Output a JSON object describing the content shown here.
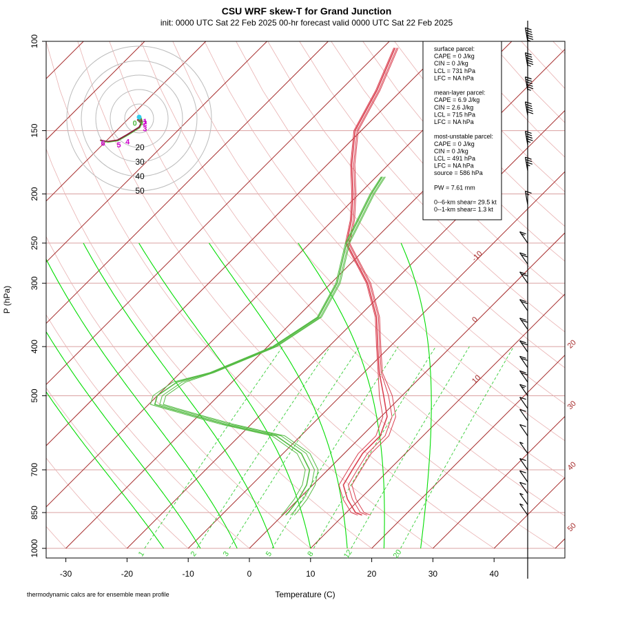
{
  "header": {
    "title": "CSU WRF skew-T for Grand Junction",
    "subtitle": "init: 0000 UTC Sat 22 Feb 2025     00-hr forecast valid 0000 UTC Sat 22 Feb 2025"
  },
  "footer_note": "thermodynamic calcs are for ensemble mean profile",
  "info_box": {
    "lines": [
      "surface parcel:",
      "CAPE = 0 J/kg",
      "CIN = 0 J/kg",
      "LCL = 731 hPa",
      "LFC = NA hPa",
      "",
      "mean-layer parcel:",
      "CAPE = 6.9 J/kg",
      "CIN = 2.6 J/kg",
      "LCL = 715 hPa",
      "LFC = NA hPa",
      "",
      "most-unstable parcel:",
      "CAPE = 0 J/kg",
      "CIN = 0 J/kg",
      "LCL = 491 hPa",
      "LFC = NA hPa",
      "source = 586 hPa",
      "",
      "PW =  7.61 mm",
      "",
      "0--6-km shear= 29.5 kt",
      "0--1-km shear= 1.3 kt"
    ]
  },
  "colors": {
    "isotherm": "#a52a2a",
    "isobar": "#d9a0a0",
    "dry_adiabat": "#e8b0b0",
    "moist_adiabat": "#00dd00",
    "mixing_ratio": "#33cc33",
    "temperature": "#d94050",
    "dewpoint": "#55bb44",
    "hodo_ring": "#bbbbbb",
    "hodo_trace": "#8b1a3a",
    "hodo_pts": "#cc00cc",
    "barb": "#000000"
  },
  "chart_data": {
    "type": "line",
    "xlabel": "Temperature (C)",
    "ylabel": "P (hPa)",
    "xlim": [
      -33,
      45
    ],
    "ylim_hpa": [
      1000,
      100
    ],
    "x_ticks": [
      -30,
      -20,
      -10,
      0,
      10,
      20,
      30,
      40
    ],
    "y_ticks": [
      100,
      150,
      200,
      250,
      300,
      400,
      500,
      700,
      850,
      1000
    ],
    "isotherm_labels": [
      -10,
      0,
      10,
      20,
      30,
      40,
      50
    ],
    "mixing_ratio_labels": [
      "1",
      "2",
      "3",
      "5",
      "8",
      "12",
      "20"
    ],
    "mixing_ratio_values": [
      1,
      2,
      3,
      5,
      8,
      12,
      20
    ],
    "series": [
      {
        "role": "temperature",
        "points": [
          [
            860,
            13
          ],
          [
            850,
            11.5
          ],
          [
            800,
            8
          ],
          [
            750,
            5
          ],
          [
            700,
            4
          ],
          [
            650,
            3
          ],
          [
            600,
            3
          ],
          [
            550,
            1
          ],
          [
            500,
            -3
          ],
          [
            450,
            -7.5
          ],
          [
            400,
            -12
          ],
          [
            350,
            -17
          ],
          [
            300,
            -24
          ],
          [
            250,
            -34
          ],
          [
            225,
            -37
          ],
          [
            200,
            -41
          ],
          [
            175,
            -46
          ],
          [
            150,
            -51
          ],
          [
            125,
            -54
          ],
          [
            103,
            -58
          ]
        ]
      },
      {
        "role": "dewpoint",
        "points": [
          [
            860,
            0.5
          ],
          [
            850,
            0.5
          ],
          [
            800,
            0
          ],
          [
            750,
            -1
          ],
          [
            700,
            -3
          ],
          [
            650,
            -7
          ],
          [
            600,
            -14
          ],
          [
            570,
            -24
          ],
          [
            550,
            -30
          ],
          [
            530,
            -36
          ],
          [
            520,
            -39
          ],
          [
            500,
            -40
          ],
          [
            470,
            -39
          ],
          [
            450,
            -35
          ],
          [
            400,
            -29
          ],
          [
            350,
            -26.5
          ],
          [
            300,
            -29
          ],
          [
            250,
            -34
          ],
          [
            200,
            -38
          ],
          [
            185,
            -39
          ]
        ]
      }
    ],
    "hodograph": {
      "ring_labels": [
        "20",
        "30",
        "40",
        "50"
      ],
      "point_labels": [
        "6",
        "5",
        "4",
        "3",
        "2",
        "1",
        "0"
      ]
    },
    "wind_barbs": [
      {
        "p": 100,
        "kt": 55
      },
      {
        "p": 112,
        "kt": 55
      },
      {
        "p": 125,
        "kt": 55
      },
      {
        "p": 140,
        "kt": 50
      },
      {
        "p": 160,
        "kt": 45
      },
      {
        "p": 180,
        "kt": 35
      },
      {
        "p": 210,
        "kt": 15
      },
      {
        "p": 250,
        "kt": 15
      },
      {
        "p": 275,
        "kt": 20
      },
      {
        "p": 300,
        "kt": 20
      },
      {
        "p": 340,
        "kt": 20
      },
      {
        "p": 370,
        "kt": 20
      },
      {
        "p": 410,
        "kt": 20
      },
      {
        "p": 440,
        "kt": 20
      },
      {
        "p": 470,
        "kt": 20
      },
      {
        "p": 500,
        "kt": 15
      },
      {
        "p": 530,
        "kt": 10
      },
      {
        "p": 560,
        "kt": 10
      },
      {
        "p": 600,
        "kt": 10
      },
      {
        "p": 650,
        "kt": 5
      },
      {
        "p": 700,
        "kt": 10
      },
      {
        "p": 740,
        "kt": 10
      },
      {
        "p": 780,
        "kt": 10
      },
      {
        "p": 820,
        "kt": 5
      },
      {
        "p": 860,
        "kt": 5
      }
    ]
  }
}
